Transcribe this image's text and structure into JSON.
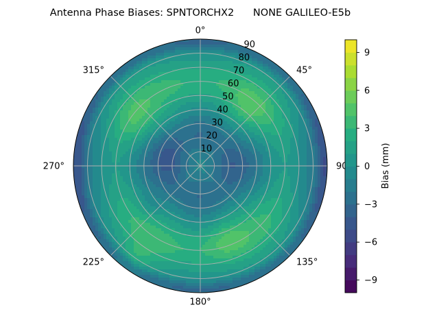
{
  "chart_data": {
    "type": "heatmap",
    "subtype": "polar-contour",
    "title": "Antenna Phase Biases: SPNTORCHX2      NONE GALILEO-E5b",
    "colormap": "viridis",
    "angular_axis": {
      "direction": "clockwise",
      "zero_location": "top",
      "tick_labels": [
        "0°",
        "45°",
        "90°",
        "135°",
        "180°",
        "225°",
        "270°",
        "315°"
      ],
      "tick_values": [
        0,
        45,
        90,
        135,
        180,
        225,
        270,
        315
      ]
    },
    "radial_axis": {
      "range": [
        0,
        90
      ],
      "tick_values": [
        10,
        20,
        30,
        40,
        50,
        60,
        70,
        80,
        90
      ],
      "tick_labels": [
        "10",
        "20",
        "30",
        "40",
        "50",
        "60",
        "70",
        "80",
        "90"
      ]
    },
    "grid": true,
    "colorbar": {
      "label": "Bias (mm)",
      "range": [
        -10,
        10
      ],
      "levels": 20,
      "tick_values": [
        -9,
        -6,
        -3,
        0,
        3,
        6,
        9
      ],
      "tick_labels": [
        "−9",
        "−6",
        "−3",
        "0",
        "3",
        "6",
        "9"
      ],
      "placement": "right"
    },
    "field_model": {
      "base": -0.5,
      "terms": [
        {
          "kind": "ring",
          "center_zenith": 60,
          "width": 16,
          "amplitude": 3.2
        },
        {
          "kind": "ring",
          "center_zenith": 22,
          "width": 14,
          "amplitude": -2.6
        },
        {
          "kind": "edge",
          "center_zenith": 88,
          "width": 5,
          "amplitude": -3.0
        },
        {
          "kind": "azimuth",
          "harmonic": 2,
          "phase_deg": 0,
          "amplitude": 0.9
        },
        {
          "kind": "azimuth",
          "harmonic": 4,
          "phase_deg": 45,
          "amplitude": 0.8
        },
        {
          "kind": "blob",
          "azimuth_deg": 40,
          "zenith": 52,
          "size": 14,
          "amplitude": 1.6
        },
        {
          "kind": "blob",
          "azimuth_deg": 160,
          "zenith": 55,
          "size": 14,
          "amplitude": 1.6
        },
        {
          "kind": "blob",
          "azimuth_deg": 305,
          "zenith": 55,
          "size": 16,
          "amplitude": 1.4
        },
        {
          "kind": "blob",
          "azimuth_deg": 215,
          "zenith": 78,
          "size": 12,
          "amplitude": 1.6
        },
        {
          "kind": "blob",
          "azimuth_deg": 230,
          "zenith": 45,
          "size": 10,
          "amplitude": -1.2
        },
        {
          "kind": "blob",
          "azimuth_deg": 300,
          "zenith": 28,
          "size": 12,
          "amplitude": -1.2
        }
      ]
    }
  }
}
